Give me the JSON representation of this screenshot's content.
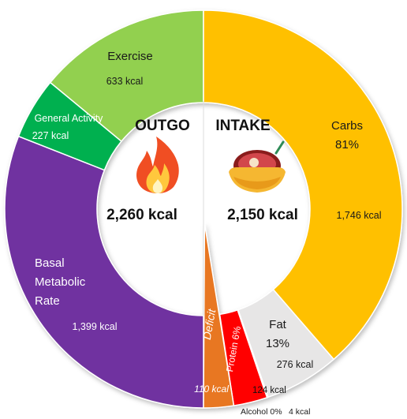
{
  "chart_data": {
    "type": "pie",
    "variant": "donut",
    "outgo": {
      "title": "OUTGO",
      "total_label": "2,260 kcal",
      "icon": "fire-icon",
      "slices": [
        {
          "name": "Basal Metabolic Rate",
          "lines": [
            "Basal",
            "Metabolic",
            "Rate"
          ],
          "value": 1399,
          "value_label": "1,399 kcal",
          "color": "#7030a0",
          "text_color": "#ffffff"
        },
        {
          "name": "General Activity",
          "lines": [
            "General Activity"
          ],
          "value": 227,
          "value_label": "227 kcal",
          "color": "#00b050",
          "text_color": "#ffffff"
        },
        {
          "name": "Exercise",
          "lines": [
            "Exercise"
          ],
          "value": 633,
          "value_label": "633 kcal",
          "color": "#92d050",
          "text_color": "#1a1a1a"
        }
      ]
    },
    "intake": {
      "title": "INTAKE",
      "total_label": "2,150 kcal",
      "icon": "food-bowl-icon",
      "slices": [
        {
          "name": "Carbs",
          "lines": [
            "Carbs",
            "81%"
          ],
          "percent": 81,
          "value": 1746,
          "value_label": "1,746 kcal",
          "color": "#ffc000",
          "text_color": "#1a1a1a"
        },
        {
          "name": "Fat",
          "lines": [
            "Fat",
            "13%"
          ],
          "percent": 13,
          "value": 276,
          "value_label": "276 kcal",
          "color": "#e7e6e6",
          "text_color": "#1a1a1a"
        },
        {
          "name": "Alcohol",
          "lines": [
            "Alcohol 0%"
          ],
          "percent": 0,
          "value": 4,
          "value_label": "4 kcal",
          "color": "#ffffff",
          "text_color": "#1a1a1a"
        },
        {
          "name": "Protein",
          "lines": [
            "Protein 6%"
          ],
          "percent": 6,
          "value": 124,
          "value_label": "124 kcal",
          "color": "#ff0000",
          "text_color": "#ffffff"
        }
      ]
    },
    "deficit": {
      "name": "Deficit",
      "value": 110,
      "value_label": "110 kcal",
      "color": "#e87722",
      "text_color": "#ffffff"
    }
  }
}
